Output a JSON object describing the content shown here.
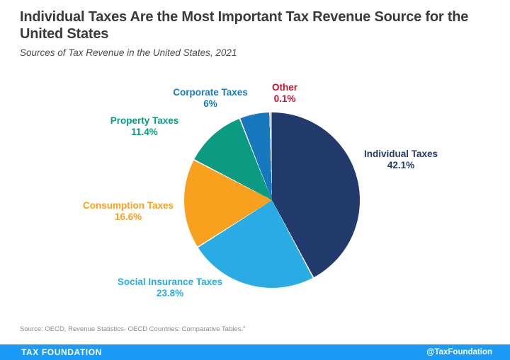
{
  "header": {
    "title": "Individual Taxes Are the Most Important Tax Revenue Source for the United States",
    "subtitle": "Sources of Tax Revenue in the United States, 2021"
  },
  "chart_data": {
    "type": "pie",
    "title": "Sources of Tax Revenue in the United States, 2021",
    "unit": "percent",
    "start_angle_deg": 0,
    "direction": "clockwise",
    "separator_color": "#ffffff",
    "slices": [
      {
        "label": "Individual Taxes",
        "value": 42.1,
        "pct_text": "42.1%",
        "color": "#223A6C"
      },
      {
        "label": "Social Insurance Taxes",
        "value": 23.8,
        "pct_text": "23.8%",
        "color": "#29ACE3"
      },
      {
        "label": "Consumption Taxes",
        "value": 16.6,
        "pct_text": "16.6%",
        "color": "#F9A11E"
      },
      {
        "label": "Property Taxes",
        "value": 11.4,
        "pct_text": "11.4%",
        "color": "#0A9B82"
      },
      {
        "label": "Corporate Taxes",
        "value": 6,
        "pct_text": "6%",
        "color": "#1878BE"
      },
      {
        "label": "Other",
        "value": 0.1,
        "pct_text": "0.1%",
        "color": "#A09AC8",
        "label_color": "#C8102E"
      }
    ]
  },
  "footer": {
    "source": "Source: OECD, Revenue Statistics- OECD Countries: Comparative Tables.\"",
    "brand": "TAX FOUNDATION",
    "handle": "@TaxFoundation",
    "bar_color": "#1B9BF5"
  }
}
